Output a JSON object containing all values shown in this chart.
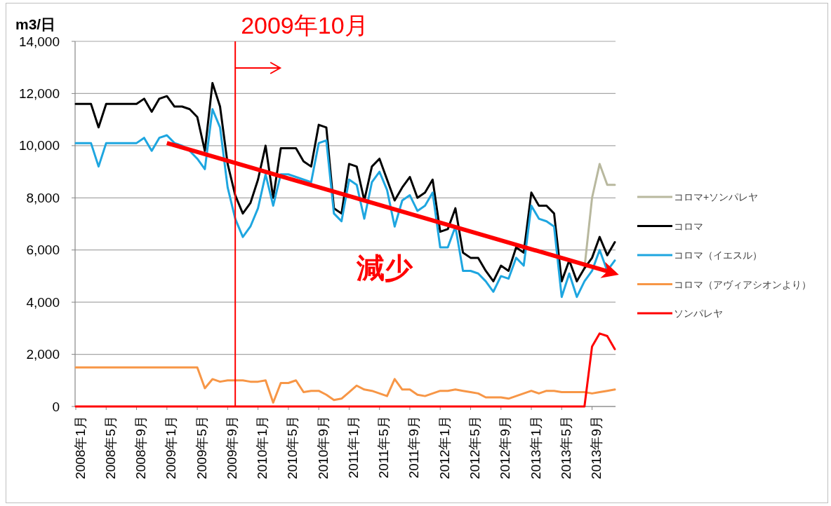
{
  "chart_data": {
    "type": "line",
    "ylabel": "m3/日",
    "x": [
      "2008-01",
      "2008-02",
      "2008-03",
      "2008-04",
      "2008-05",
      "2008-06",
      "2008-07",
      "2008-08",
      "2008-09",
      "2008-10",
      "2008-11",
      "2008-12",
      "2009-01",
      "2009-02",
      "2009-03",
      "2009-04",
      "2009-05",
      "2009-06",
      "2009-07",
      "2009-08",
      "2009-09",
      "2009-10",
      "2009-11",
      "2009-12",
      "2010-01",
      "2010-02",
      "2010-03",
      "2010-04",
      "2010-05",
      "2010-06",
      "2010-07",
      "2010-08",
      "2010-09",
      "2010-10",
      "2010-11",
      "2010-12",
      "2011-01",
      "2011-02",
      "2011-03",
      "2011-04",
      "2011-05",
      "2011-06",
      "2011-07",
      "2011-08",
      "2011-09",
      "2011-10",
      "2011-11",
      "2011-12",
      "2012-01",
      "2012-02",
      "2012-03",
      "2012-04",
      "2012-05",
      "2012-06",
      "2012-07",
      "2012-08",
      "2012-09",
      "2012-10",
      "2012-11",
      "2012-12",
      "2013-01",
      "2013-02",
      "2013-03",
      "2013-04",
      "2013-05",
      "2013-06",
      "2013-07",
      "2013-08",
      "2013-09",
      "2013-10",
      "2013-11",
      "2013-12"
    ],
    "series": [
      {
        "name": "コロマ+ソンパレヤ",
        "color": "#b8b89e",
        "values": [
          null,
          null,
          null,
          null,
          null,
          null,
          null,
          null,
          null,
          null,
          null,
          null,
          null,
          null,
          null,
          null,
          null,
          null,
          null,
          null,
          null,
          null,
          null,
          null,
          null,
          null,
          null,
          null,
          null,
          null,
          null,
          null,
          null,
          null,
          null,
          null,
          null,
          null,
          null,
          null,
          null,
          null,
          null,
          null,
          null,
          null,
          null,
          null,
          null,
          null,
          null,
          null,
          null,
          null,
          null,
          null,
          null,
          null,
          null,
          null,
          null,
          null,
          null,
          null,
          null,
          null,
          null,
          5300,
          8000,
          9300,
          8500,
          8500
        ]
      },
      {
        "name": "コロマ",
        "color": "#000000",
        "values": [
          11600,
          11600,
          11600,
          10700,
          11600,
          11600,
          11600,
          11600,
          11600,
          11800,
          11300,
          11800,
          11900,
          11500,
          11500,
          11400,
          11100,
          9800,
          12400,
          11500,
          9300,
          8100,
          7400,
          7800,
          8700,
          10000,
          8000,
          9900,
          9900,
          9900,
          9400,
          9200,
          10800,
          10700,
          7600,
          7400,
          9300,
          9200,
          7900,
          9200,
          9500,
          8700,
          7900,
          8400,
          8800,
          8000,
          8200,
          8700,
          6700,
          6800,
          7600,
          5900,
          5700,
          5700,
          5200,
          4800,
          5400,
          5200,
          6100,
          5900,
          8200,
          7700,
          7700,
          7400,
          4800,
          5600,
          4800,
          5300,
          5700,
          6500,
          5800,
          6300
        ]
      },
      {
        "name": "コロマ（イエスル）",
        "color": "#1ea6e0",
        "values": [
          10100,
          10100,
          10100,
          9200,
          10100,
          10100,
          10100,
          10100,
          10100,
          10300,
          9800,
          10300,
          10400,
          10100,
          10000,
          9800,
          9500,
          9100,
          11400,
          10700,
          8400,
          7200,
          6500,
          6900,
          7600,
          8900,
          7700,
          8900,
          8900,
          8800,
          8700,
          8600,
          10100,
          10200,
          7400,
          7100,
          8700,
          8500,
          7200,
          8600,
          9000,
          8300,
          6900,
          7900,
          8100,
          7500,
          7700,
          8200,
          6100,
          6100,
          6900,
          5200,
          5200,
          5100,
          4800,
          4400,
          5000,
          4900,
          5700,
          5400,
          7700,
          7200,
          7100,
          6900,
          4200,
          5100,
          4200,
          4800,
          5200,
          6000,
          5200,
          5600
        ]
      },
      {
        "name": "コロマ（アヴィアシオンより）",
        "color": "#f79646",
        "values": [
          1500,
          1500,
          1500,
          1500,
          1500,
          1500,
          1500,
          1500,
          1500,
          1500,
          1500,
          1500,
          1500,
          1500,
          1500,
          1500,
          1500,
          700,
          1050,
          950,
          1000,
          1000,
          1000,
          950,
          950,
          1000,
          150,
          900,
          900,
          1000,
          550,
          600,
          600,
          450,
          250,
          300,
          550,
          800,
          650,
          600,
          500,
          400,
          1050,
          650,
          650,
          450,
          400,
          500,
          600,
          600,
          650,
          600,
          550,
          500,
          350,
          350,
          350,
          300,
          400,
          500,
          600,
          500,
          600,
          600,
          550,
          550,
          550,
          550,
          500,
          550,
          600,
          650
        ]
      },
      {
        "name": "ソンパレヤ",
        "color": "#ff0000",
        "values": [
          0,
          0,
          0,
          0,
          0,
          0,
          0,
          0,
          0,
          0,
          0,
          0,
          0,
          0,
          0,
          0,
          0,
          0,
          0,
          0,
          0,
          0,
          0,
          0,
          0,
          0,
          0,
          0,
          0,
          0,
          0,
          0,
          0,
          0,
          0,
          0,
          0,
          0,
          0,
          0,
          0,
          0,
          0,
          0,
          0,
          0,
          0,
          0,
          0,
          0,
          0,
          0,
          0,
          0,
          0,
          0,
          0,
          0,
          0,
          0,
          0,
          0,
          0,
          0,
          0,
          0,
          0,
          0,
          2300,
          2800,
          2700,
          2200
        ]
      },
      {
        "type": "line",
        "color": "#ff0000",
        "x": [
          "2009-01",
          "2013-12"
        ],
        "values": [
          10100,
          5100
        ]
      }
    ],
    "xlim": [
      "2008-01",
      "2013-12"
    ],
    "xticks": [
      {
        "value": "2008-01",
        "label": "2008年1月"
      },
      {
        "value": "2008-05",
        "label": "2008年5月"
      },
      {
        "value": "2008-09",
        "label": "2008年9月"
      },
      {
        "value": "2009-01",
        "label": "2009年1月"
      },
      {
        "value": "2009-05",
        "label": "2009年5月"
      },
      {
        "value": "2009-09",
        "label": "2009年9月"
      },
      {
        "value": "2010-01",
        "label": "2010年1月"
      },
      {
        "value": "2010-05",
        "label": "2010年5月"
      },
      {
        "value": "2010-09",
        "label": "2010年9月"
      },
      {
        "value": "2011-01",
        "label": "2011年1月"
      },
      {
        "value": "2011-05",
        "label": "2011年5月"
      },
      {
        "value": "2011-09",
        "label": "2011年9月"
      },
      {
        "value": "2012-01",
        "label": "2012年1月"
      },
      {
        "value": "2012-05",
        "label": "2012年5月"
      },
      {
        "value": "2012-09",
        "label": "2012年9月"
      },
      {
        "value": "2013-01",
        "label": "2013年1月"
      },
      {
        "value": "2013-05",
        "label": "2013年5月"
      },
      {
        "value": "2013-09",
        "label": "2013年9月"
      }
    ],
    "ylim": [
      0,
      14000
    ],
    "yticks": [
      0,
      {
        "value": 2000,
        "label": "2,000"
      },
      {
        "value": 4000,
        "label": "4,000"
      },
      {
        "value": 6000,
        "label": "6,000"
      },
      {
        "value": 8000,
        "label": "8,000"
      },
      {
        "value": 10000,
        "label": "10,000"
      },
      {
        "value": 12000,
        "label": "12,000"
      },
      {
        "value": 14000,
        "label": "14,000"
      }
    ],
    "grid": "y",
    "legend": "right",
    "ref_lines": [
      {
        "axis": "x",
        "value": "2009-10",
        "label": "2009年10月",
        "color": "#ff0000"
      }
    ],
    "annotations": [
      "減少"
    ]
  }
}
